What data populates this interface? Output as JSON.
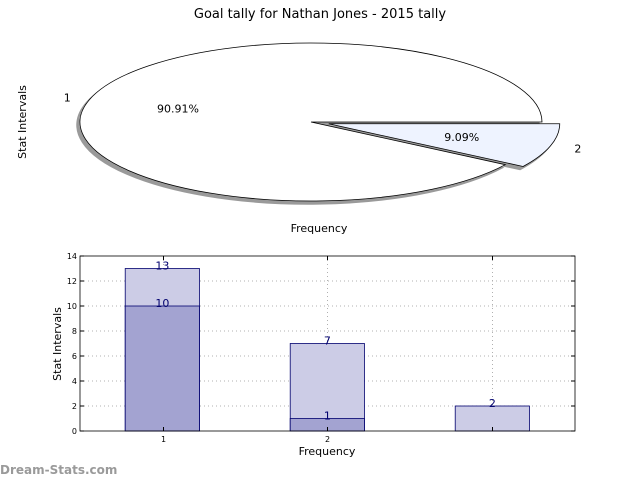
{
  "title": "Goal tally for Nathan Jones - 2015 tally",
  "watermark": "Dream-Stats.com",
  "colors": {
    "pie_fill_1": "#ffffff",
    "pie_fill_2": "#eef3ff",
    "bar_outer": "#ccccE6",
    "bar_inner": "#a3a3d1",
    "bar_edge": "#00006e",
    "label_color": "#00006e",
    "grid": "#b0b0b0"
  },
  "chart_data": [
    {
      "type": "pie",
      "xlabel": "Frequency",
      "ylabel": "Stat Intervals",
      "slices": [
        {
          "label": "1",
          "pct_label": "90.91%",
          "value": 90.91
        },
        {
          "label": "2",
          "pct_label": "9.09%",
          "value": 9.09
        }
      ],
      "shadow": true,
      "exploded_slice": "2"
    },
    {
      "type": "bar",
      "xlabel": "Frequency",
      "ylabel": "Stat Intervals",
      "ylim": [
        0,
        14
      ],
      "yticks": [
        0,
        2,
        4,
        6,
        8,
        10,
        12,
        14
      ],
      "xticks": [
        "1",
        "2"
      ],
      "grid": true,
      "bars": [
        {
          "category": "1",
          "outer": 13,
          "outer_label": "13",
          "inner": 10,
          "inner_label": "10"
        },
        {
          "category": "2",
          "outer": 7,
          "outer_label": "7",
          "inner": 1,
          "inner_label": "1"
        },
        {
          "category": "",
          "outer": 2,
          "outer_label": "2",
          "inner": null,
          "inner_label": ""
        }
      ]
    }
  ]
}
